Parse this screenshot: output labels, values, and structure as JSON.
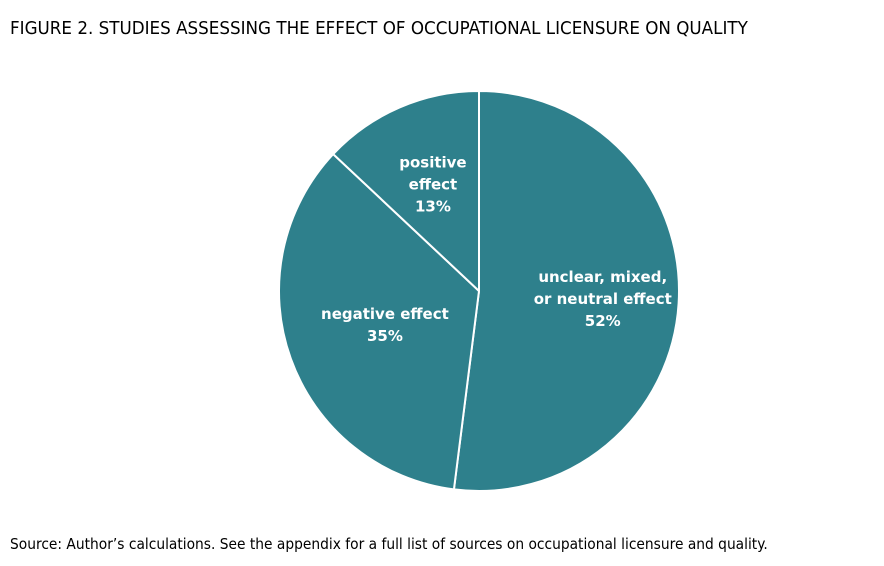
{
  "figure": {
    "title": "FIGURE 2. STUDIES ASSESSING THE EFFECT OF OCCUPATIONAL LICENSURE ON QUALITY",
    "source": "Source: Author’s calculations. See the appendix for a full list of sources on occupational licensure and quality."
  },
  "chart_data": {
    "type": "pie",
    "title": "FIGURE 2. STUDIES ASSESSING THE EFFECT OF OCCUPATIONAL LICENSURE ON QUALITY",
    "slices": [
      {
        "label_lines": [
          "unclear, mixed,",
          "or neutral effect"
        ],
        "value": 52,
        "value_label": "52%",
        "color": "#2e808c"
      },
      {
        "label_lines": [
          "negative effect"
        ],
        "value": 35,
        "value_label": "35%",
        "color": "#2e808c"
      },
      {
        "label_lines": [
          "positive",
          "effect"
        ],
        "value": 13,
        "value_label": "13%",
        "color": "#2e808c"
      }
    ],
    "start": "12 o'clock, clockwise",
    "slice_separator_color": "#ffffff",
    "legend": "none (labels inside slices)"
  }
}
